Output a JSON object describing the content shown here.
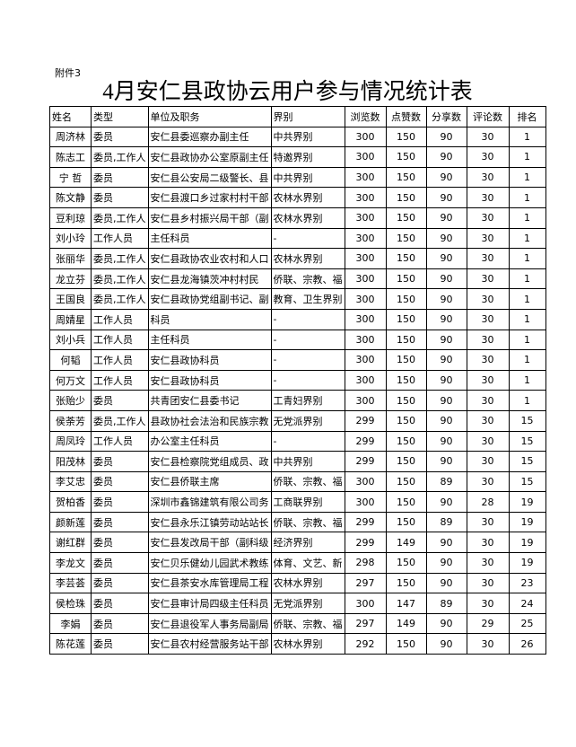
{
  "attachment": "附件3",
  "title": "4月安仁县政协云用户参与情况统计表",
  "table": {
    "header": [
      "姓名",
      "类型",
      "单位及职务",
      "界别",
      "浏览数",
      "点赞数",
      "分享数",
      "评论数",
      "排名"
    ],
    "rows": [
      [
        "周济林",
        "委员",
        "安仁县委巡察办副主任",
        "中共界别",
        300,
        150,
        90,
        30,
        1
      ],
      [
        "陈志工",
        "委员,工作人",
        "安仁县政协办公室原副主任",
        "特邀界别",
        300,
        150,
        90,
        30,
        1
      ],
      [
        "宁 哲",
        "委员",
        "安仁县公安局二级警长、县",
        "中共界别",
        300,
        150,
        90,
        30,
        1
      ],
      [
        "陈文静",
        "委员",
        "安仁县渡口乡过家村村干部",
        "农林水界别",
        300,
        150,
        90,
        30,
        1
      ],
      [
        "豆利琼",
        "委员,工作人",
        "安仁县乡村振兴局干部（副",
        "农林水界别",
        300,
        150,
        90,
        30,
        1
      ],
      [
        "刘小玲",
        "工作人员",
        "主任科员",
        "-",
        300,
        150,
        90,
        30,
        1
      ],
      [
        "张丽华",
        "委员,工作人",
        "安仁县政协农业农村和人口",
        "农林水界别",
        300,
        150,
        90,
        30,
        1
      ],
      [
        "龙立芬",
        "委员,工作人",
        "安仁县龙海镇茨冲村村民",
        "侨联、宗教、福",
        300,
        150,
        90,
        30,
        1
      ],
      [
        "王国良",
        "委员,工作人",
        "安仁县政协党组副书记、副",
        "教育、卫生界别",
        300,
        150,
        90,
        30,
        1
      ],
      [
        "周婧星",
        "工作人员",
        "科员",
        "-",
        300,
        150,
        90,
        30,
        1
      ],
      [
        "刘小兵",
        "工作人员",
        "主任科员",
        "-",
        300,
        150,
        90,
        30,
        1
      ],
      [
        "何韬",
        "工作人员",
        "安仁县政协科员",
        "-",
        300,
        150,
        90,
        30,
        1
      ],
      [
        "何万文",
        "工作人员",
        "安仁县政协科员",
        "-",
        300,
        150,
        90,
        30,
        1
      ],
      [
        "张贻少",
        "委员",
        "共青团安仁县委书记",
        "工青妇界别",
        300,
        150,
        90,
        30,
        1
      ],
      [
        "侯荼芳",
        "委员,工作人",
        "县政协社会法治和民族宗教",
        "无党派界别",
        299,
        150,
        90,
        30,
        15
      ],
      [
        "周凤玲",
        "工作人员",
        "办公室主任科员",
        "-",
        299,
        150,
        90,
        30,
        15
      ],
      [
        "阳茂林",
        "委员",
        "安仁县检察院党组成员、政",
        "中共界别",
        299,
        150,
        90,
        30,
        15
      ],
      [
        "李艾忠",
        "委员",
        "安仁县侨联主席",
        "侨联、宗教、福",
        300,
        150,
        89,
        30,
        15
      ],
      [
        "贺柏香",
        "委员",
        "深圳市鑫锦建筑有限公司务",
        "工商联界别",
        300,
        150,
        90,
        28,
        19
      ],
      [
        "颜新莲",
        "委员",
        "安仁县永乐江镇劳动站站长",
        "侨联、宗教、福",
        299,
        150,
        89,
        30,
        19
      ],
      [
        "谢红群",
        "委员",
        "安仁县发改局干部（副科级",
        "经济界别",
        299,
        149,
        90,
        30,
        19
      ],
      [
        "李龙文",
        "委员",
        "安仁贝乐健幼儿园武术教练",
        "体育、文艺、新",
        298,
        150,
        90,
        30,
        19
      ],
      [
        "李芸荟",
        "委员",
        "安仁县茶安水库管理局工程",
        "农林水界别",
        297,
        150,
        90,
        30,
        23
      ],
      [
        "侯检珠",
        "委员",
        "安仁县审计局四级主任科员",
        "无党派界别",
        300,
        147,
        89,
        30,
        24
      ],
      [
        "李娟",
        "委员",
        "安仁县退役军人事务局副局",
        "侨联、宗教、福",
        297,
        149,
        90,
        29,
        25
      ],
      [
        "陈花莲",
        "委员",
        "安仁县农村经营服务站干部",
        "农林水界别",
        292,
        150,
        90,
        30,
        26
      ]
    ]
  }
}
